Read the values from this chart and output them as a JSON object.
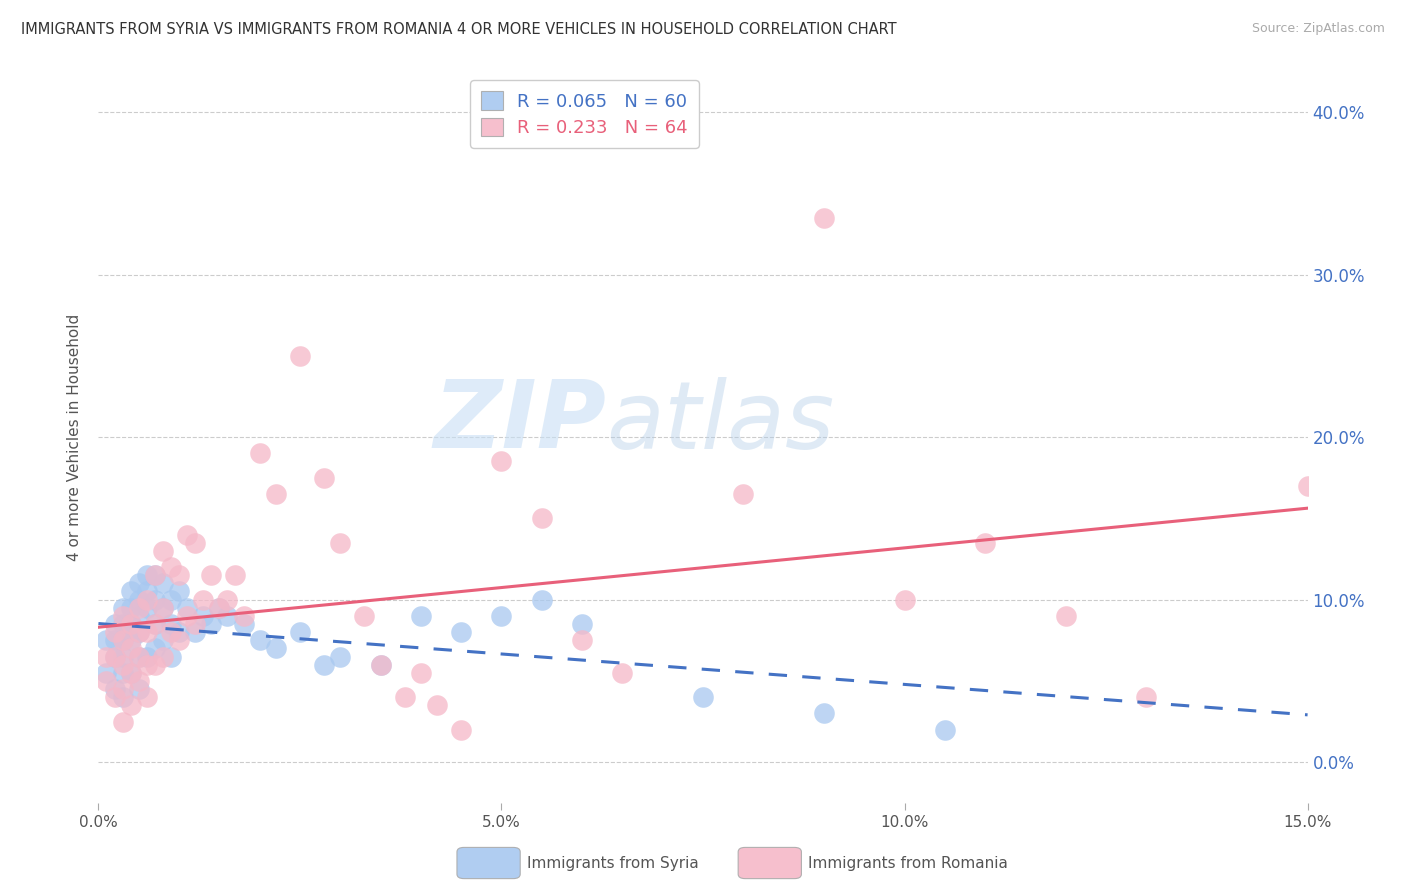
{
  "title": "IMMIGRANTS FROM SYRIA VS IMMIGRANTS FROM ROMANIA 4 OR MORE VEHICLES IN HOUSEHOLD CORRELATION CHART",
  "source": "Source: ZipAtlas.com",
  "ylabel": "4 or more Vehicles in Household",
  "xlabel_syria": "Immigrants from Syria",
  "xlabel_romania": "Immigrants from Romania",
  "xlim": [
    0.0,
    0.15
  ],
  "ylim": [
    -0.025,
    0.425
  ],
  "yticks": [
    0.0,
    0.1,
    0.2,
    0.3,
    0.4
  ],
  "xticks": [
    0.0,
    0.05,
    0.1,
    0.15
  ],
  "xtick_labels": [
    "0.0%",
    "5.0%",
    "10.0%",
    "15.0%"
  ],
  "ytick_labels_right": [
    "0.0%",
    "10.0%",
    "20.0%",
    "30.0%",
    "40.0%"
  ],
  "syria_R": 0.065,
  "syria_N": 60,
  "romania_R": 0.233,
  "romania_N": 64,
  "syria_color": "#a8c8f0",
  "romania_color": "#f5b8c8",
  "syria_line_color": "#4472c4",
  "romania_line_color": "#e8607a",
  "watermark_zip": "ZIP",
  "watermark_atlas": "atlas",
  "syria_x": [
    0.001,
    0.001,
    0.002,
    0.002,
    0.002,
    0.002,
    0.003,
    0.003,
    0.003,
    0.003,
    0.003,
    0.003,
    0.004,
    0.004,
    0.004,
    0.004,
    0.004,
    0.005,
    0.005,
    0.005,
    0.005,
    0.005,
    0.005,
    0.006,
    0.006,
    0.006,
    0.006,
    0.007,
    0.007,
    0.007,
    0.007,
    0.008,
    0.008,
    0.008,
    0.009,
    0.009,
    0.009,
    0.01,
    0.01,
    0.011,
    0.012,
    0.013,
    0.014,
    0.015,
    0.016,
    0.018,
    0.02,
    0.022,
    0.025,
    0.028,
    0.03,
    0.035,
    0.04,
    0.045,
    0.05,
    0.055,
    0.06,
    0.075,
    0.09,
    0.105
  ],
  "syria_y": [
    0.075,
    0.055,
    0.085,
    0.075,
    0.065,
    0.045,
    0.095,
    0.085,
    0.075,
    0.065,
    0.055,
    0.04,
    0.105,
    0.095,
    0.085,
    0.075,
    0.055,
    0.11,
    0.1,
    0.09,
    0.08,
    0.065,
    0.045,
    0.115,
    0.105,
    0.095,
    0.065,
    0.115,
    0.1,
    0.085,
    0.07,
    0.11,
    0.095,
    0.075,
    0.1,
    0.085,
    0.065,
    0.105,
    0.08,
    0.095,
    0.08,
    0.09,
    0.085,
    0.095,
    0.09,
    0.085,
    0.075,
    0.07,
    0.08,
    0.06,
    0.065,
    0.06,
    0.09,
    0.08,
    0.09,
    0.1,
    0.085,
    0.04,
    0.03,
    0.02
  ],
  "romania_x": [
    0.001,
    0.001,
    0.002,
    0.002,
    0.002,
    0.003,
    0.003,
    0.003,
    0.003,
    0.003,
    0.004,
    0.004,
    0.004,
    0.004,
    0.005,
    0.005,
    0.005,
    0.005,
    0.006,
    0.006,
    0.006,
    0.006,
    0.007,
    0.007,
    0.007,
    0.008,
    0.008,
    0.008,
    0.009,
    0.009,
    0.01,
    0.01,
    0.011,
    0.011,
    0.012,
    0.012,
    0.013,
    0.014,
    0.015,
    0.016,
    0.017,
    0.018,
    0.02,
    0.022,
    0.025,
    0.028,
    0.03,
    0.033,
    0.035,
    0.038,
    0.04,
    0.042,
    0.045,
    0.05,
    0.055,
    0.06,
    0.065,
    0.08,
    0.09,
    0.1,
    0.11,
    0.12,
    0.13,
    0.15
  ],
  "romania_y": [
    0.065,
    0.05,
    0.08,
    0.065,
    0.04,
    0.09,
    0.075,
    0.06,
    0.045,
    0.025,
    0.085,
    0.07,
    0.055,
    0.035,
    0.095,
    0.08,
    0.065,
    0.05,
    0.1,
    0.08,
    0.06,
    0.04,
    0.115,
    0.085,
    0.06,
    0.13,
    0.095,
    0.065,
    0.12,
    0.08,
    0.115,
    0.075,
    0.14,
    0.09,
    0.135,
    0.085,
    0.1,
    0.115,
    0.095,
    0.1,
    0.115,
    0.09,
    0.19,
    0.165,
    0.25,
    0.175,
    0.135,
    0.09,
    0.06,
    0.04,
    0.055,
    0.035,
    0.02,
    0.185,
    0.15,
    0.075,
    0.055,
    0.165,
    0.335,
    0.1,
    0.135,
    0.09,
    0.04,
    0.17
  ]
}
